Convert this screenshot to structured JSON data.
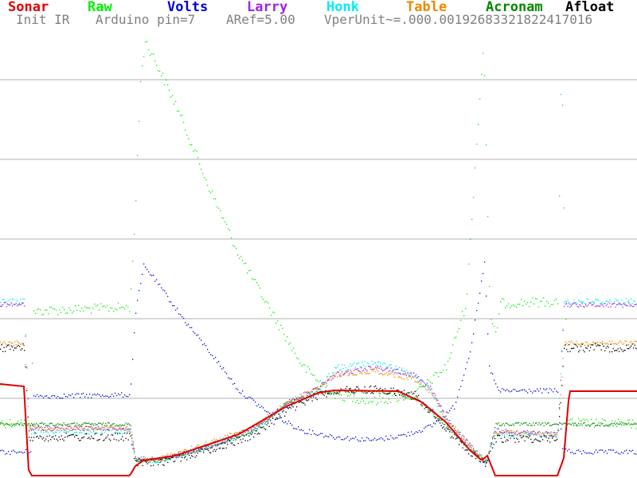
{
  "legend": [
    {
      "label": "Sonar",
      "color": "#e00000"
    },
    {
      "label": "Raw",
      "color": "#00ee00"
    },
    {
      "label": "Volts",
      "color": "#0000dd"
    },
    {
      "label": "Larry",
      "color": "#a020f0"
    },
    {
      "label": "Honk",
      "color": "#00eeee"
    },
    {
      "label": "Table",
      "color": "#ee8800"
    },
    {
      "label": "Acronam",
      "color": "#008800"
    },
    {
      "label": "Afloat",
      "color": "#000000"
    }
  ],
  "status": {
    "init": "Init IR",
    "pin": "Arduino pin=7",
    "aref": "ARef=5.00",
    "vperunit": "VperUnit~=.000.00192683321822417016"
  },
  "chart_data": {
    "type": "scatter",
    "grid": "horizontal",
    "series": [
      {
        "name": "Sonar",
        "color": "#e00000",
        "style": "line"
      },
      {
        "name": "Raw",
        "color": "#00ee00",
        "style": "dots"
      },
      {
        "name": "Volts",
        "color": "#0000dd",
        "style": "dots"
      },
      {
        "name": "Larry",
        "color": "#a020f0",
        "style": "dots"
      },
      {
        "name": "Honk",
        "color": "#00eeee",
        "style": "dots"
      },
      {
        "name": "Table",
        "color": "#ee8800",
        "style": "dots"
      },
      {
        "name": "Acronam",
        "color": "#008800",
        "style": "dots"
      },
      {
        "name": "Afloat",
        "color": "#000000",
        "style": "dots"
      }
    ]
  }
}
